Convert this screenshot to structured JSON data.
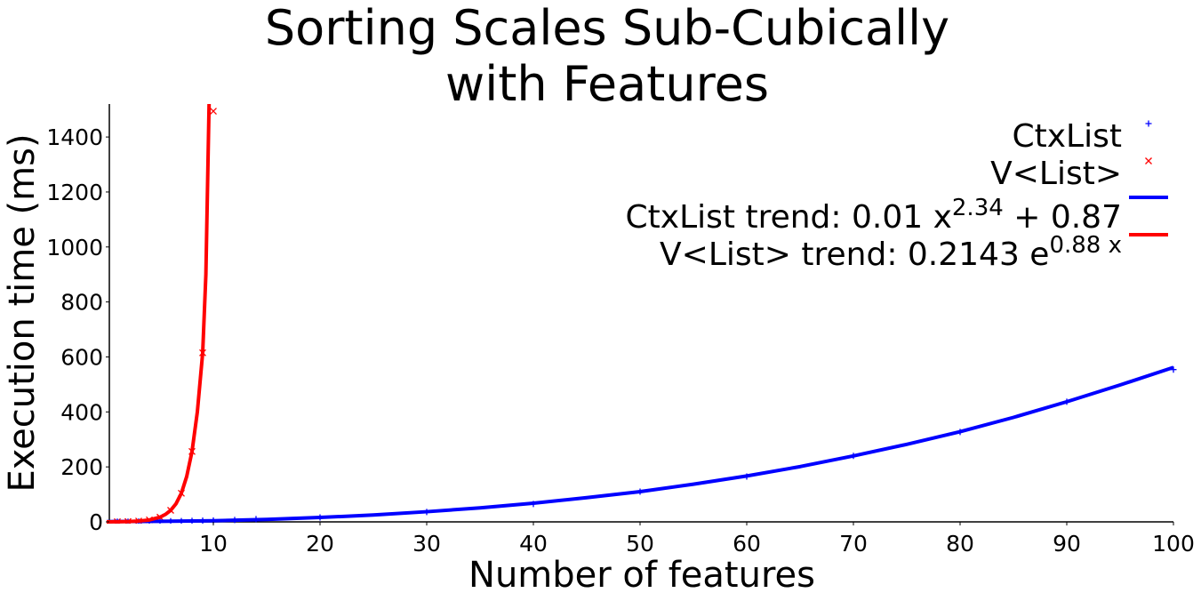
{
  "chart_data": {
    "type": "scatter",
    "title": [
      "Sorting Scales Sub-Cubically",
      "with Features"
    ],
    "xlabel": "Number of features",
    "ylabel": "Execution time (ms)",
    "xlim": [
      0,
      100
    ],
    "ylim": [
      0,
      1520
    ],
    "xticks": [
      10,
      20,
      30,
      40,
      50,
      60,
      70,
      80,
      90,
      100
    ],
    "yticks": [
      0,
      200,
      400,
      600,
      800,
      1000,
      1200,
      1400
    ],
    "grid": false,
    "legend": "upper right",
    "series": [
      {
        "name": "CtxList",
        "color": "#0000ff",
        "style": "plus",
        "x": [
          1,
          2,
          3,
          4,
          5,
          6,
          7,
          8,
          9,
          10,
          12,
          14,
          20,
          30,
          40,
          50,
          60,
          70,
          80,
          90,
          100
        ],
        "values": [
          0.9,
          1,
          1.2,
          1.5,
          1.9,
          2.4,
          3,
          3.7,
          4.4,
          5,
          7,
          10,
          16,
          36,
          65,
          110,
          165,
          240,
          327,
          437,
          554
        ]
      },
      {
        "name": "V<List>",
        "color": "#ff0000",
        "style": "cross",
        "x": [
          1,
          2,
          3,
          4,
          5,
          6,
          7,
          8,
          9,
          10
        ],
        "values": [
          0.5,
          1.2,
          3,
          7,
          17,
          42,
          104,
          256,
          615,
          1494
        ]
      },
      {
        "name": [
          "CtxList trend: 0.01 x",
          "2.34",
          " + 0.87"
        ],
        "color": "#0000ff",
        "style": "line",
        "x": [
          0,
          5,
          10,
          15,
          20,
          25,
          30,
          35,
          40,
          45,
          50,
          55,
          60,
          65,
          70,
          75,
          80,
          85,
          90,
          95,
          100
        ],
        "values": [
          1,
          2,
          4,
          9,
          16,
          25,
          37,
          51,
          68,
          88,
          110,
          137,
          167,
          201,
          240,
          282,
          328,
          380,
          437,
          498,
          562
        ]
      },
      {
        "name": [
          "V<List> trend: 0.2143 e",
          "0.88 x"
        ],
        "color": "#ff0000",
        "style": "line",
        "x": [
          0,
          1,
          2,
          3,
          4,
          5,
          5.5,
          6,
          6.5,
          7,
          7.5,
          8,
          8.5,
          9,
          9.3,
          9.6
        ],
        "values": [
          0.2,
          0.5,
          1.2,
          3,
          7,
          17,
          27,
          42,
          66,
          104,
          165,
          256,
          400,
          615,
          900,
          1520
        ]
      }
    ]
  }
}
